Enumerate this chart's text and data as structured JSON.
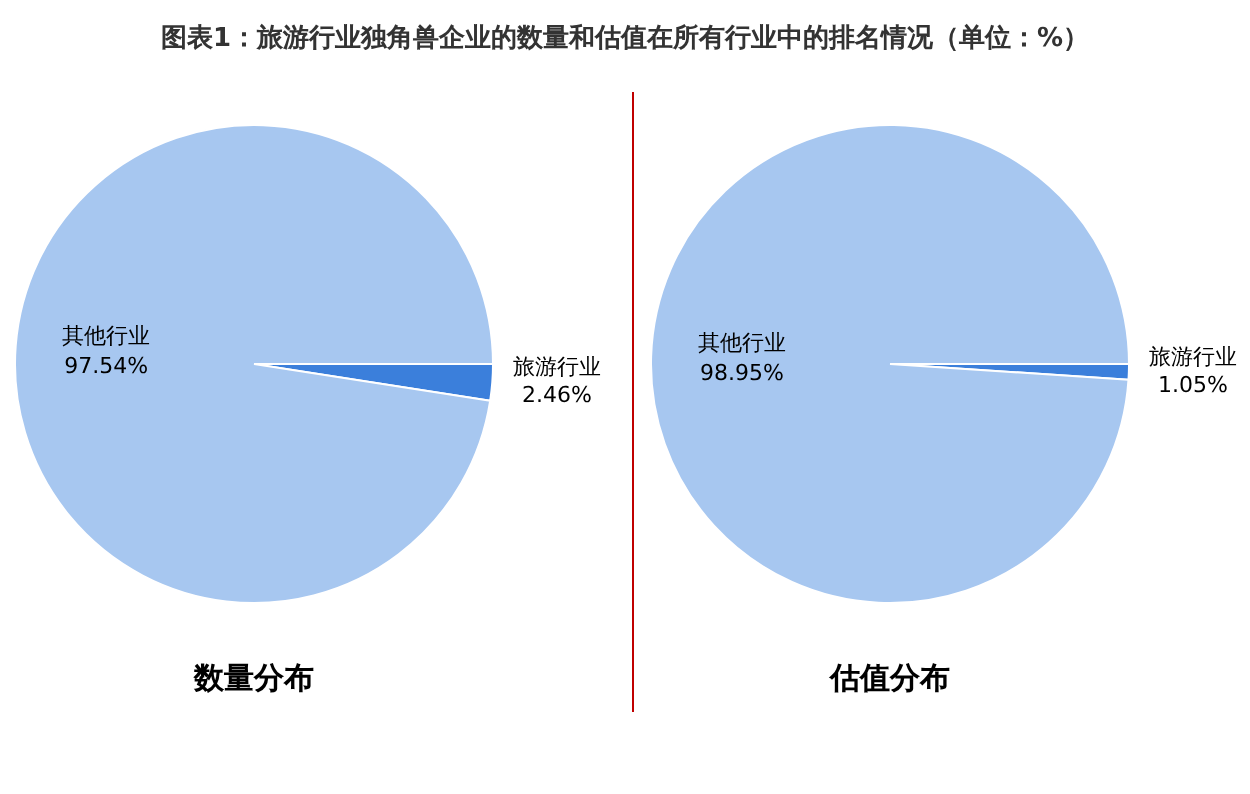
{
  "chart_data": [
    {
      "type": "pie",
      "title": "图表1：旅游行业独角兽企业的数量和估值在所有行业中的排名情况（单位：%）",
      "subtitle": "数量分布",
      "categories": [
        "旅游行业",
        "其他行业"
      ],
      "values": [
        2.46,
        97.54
      ],
      "value_labels": [
        "2.46%",
        "97.54%"
      ],
      "colors": [
        "#3b7fdb",
        "#a7c7f0"
      ]
    },
    {
      "type": "pie",
      "subtitle": "估值分布",
      "categories": [
        "旅游行业",
        "其他行业"
      ],
      "values": [
        1.05,
        98.95
      ],
      "value_labels": [
        "1.05%",
        "98.95%"
      ],
      "colors": [
        "#3b7fdb",
        "#a7c7f0"
      ]
    }
  ]
}
